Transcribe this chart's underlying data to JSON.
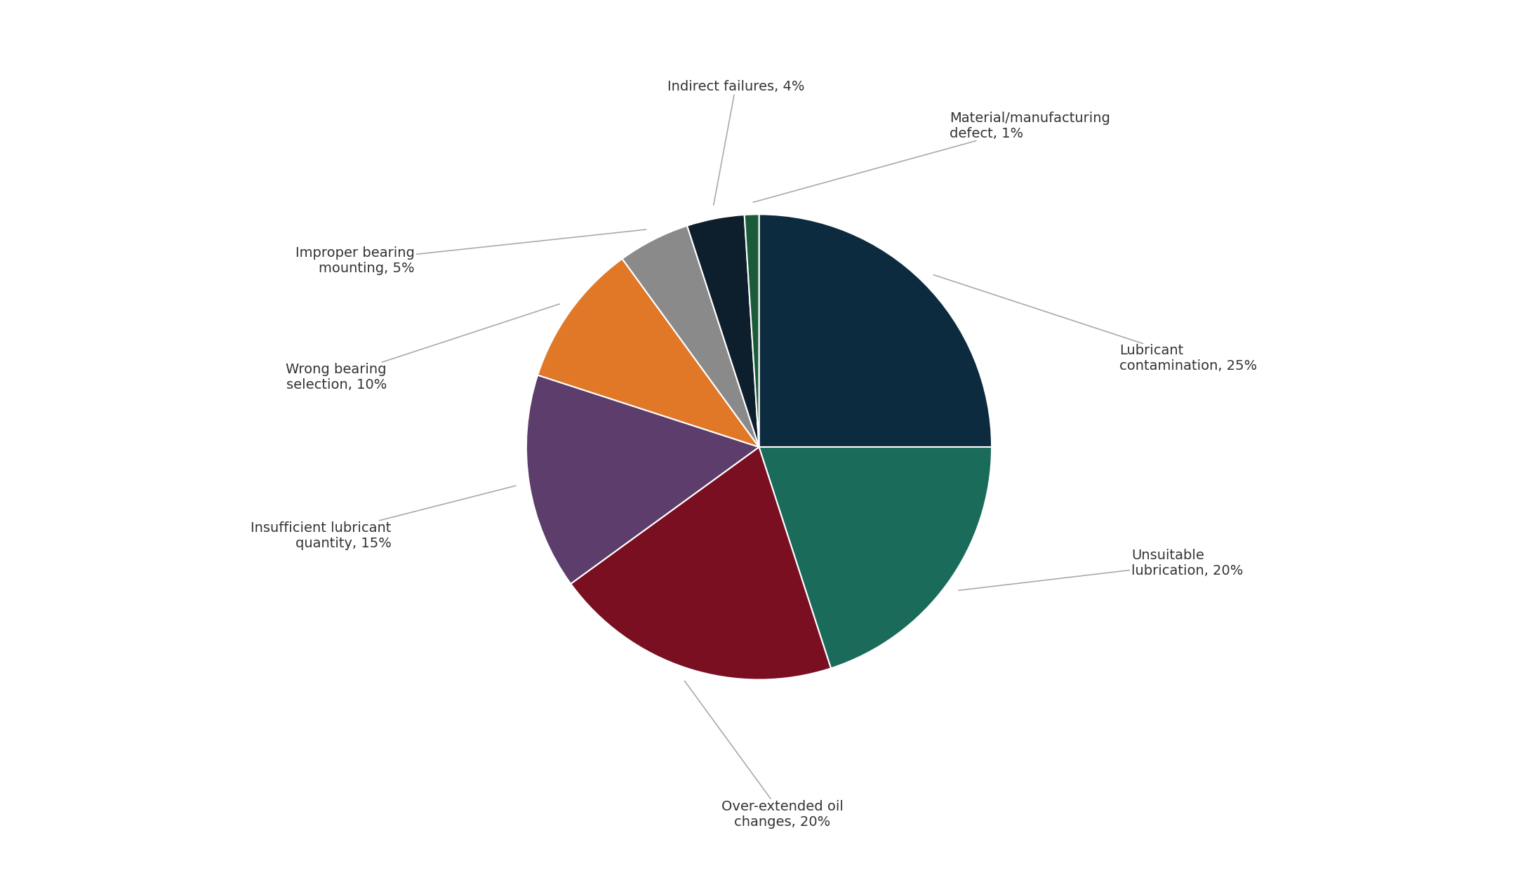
{
  "labels": [
    "Lubricant\ncontamination, 25%",
    "Unsuitable\nlubrication, 20%",
    "Over-extended oil\nchanges, 20%",
    "Insufficient lubricant\nquantity, 15%",
    "Wrong bearing\nselection, 10%",
    "Improper bearing\nmounting, 5%",
    "Indirect failures, 4%",
    "Material/manufacturing\ndefect, 1%"
  ],
  "values": [
    25,
    20,
    20,
    15,
    10,
    5,
    4,
    1
  ],
  "colors": [
    "#0d2b3e",
    "#1a6b5a",
    "#7a0f22",
    "#5c3d6b",
    "#e07828",
    "#8a8a8a",
    "#0d1f2d",
    "#1a5c3a"
  ],
  "startangle": 90,
  "background_color": "#ffffff",
  "label_fontsize": 14.0,
  "edge_color": "white",
  "edge_width": 1.5
}
